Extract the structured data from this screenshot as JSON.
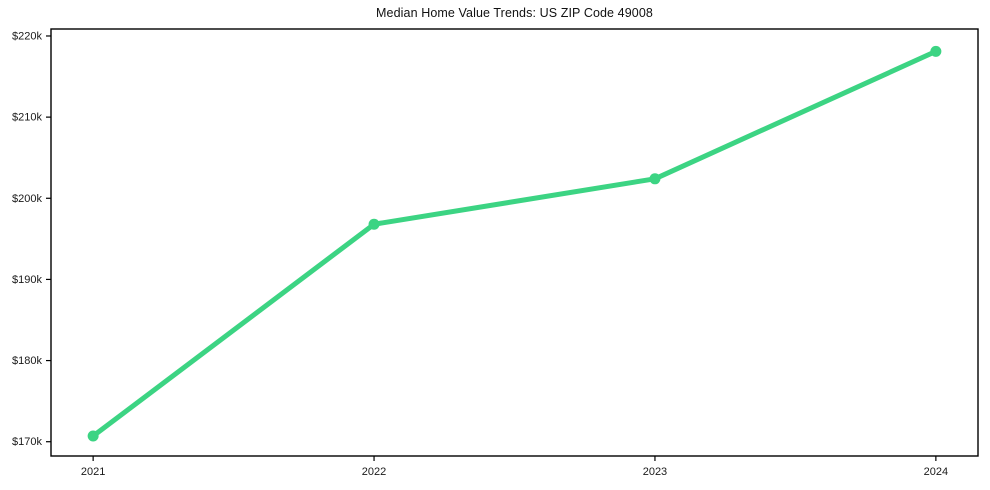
{
  "chart_data": {
    "type": "line",
    "title": "Median Home Value Trends: US ZIP Code 49008",
    "x": [
      2021,
      2022,
      2023,
      2024
    ],
    "series": [
      {
        "name": "Median Home Value",
        "values": [
          170700,
          196800,
          202400,
          218100
        ]
      }
    ],
    "xtick_values": [
      2021,
      2022,
      2023,
      2024
    ],
    "xtick_labels": [
      "2021",
      "2022",
      "2023",
      "2024"
    ],
    "ytick_values": [
      170000,
      180000,
      190000,
      200000,
      210000,
      220000
    ],
    "ytick_labels": [
      "$170k",
      "$180k",
      "$190k",
      "$200k",
      "$210k",
      "$220k"
    ],
    "xlim": [
      2020.85,
      2024.15
    ],
    "ylim": [
      168240,
      220860
    ],
    "grid": false,
    "legend": "none",
    "xlabel": "",
    "ylabel": "",
    "colors": {
      "line": "#3cd483",
      "marker": "#3cd483",
      "axis": "#000000",
      "text": "#1a1a1a",
      "background": "#ffffff"
    },
    "marker_style": "circle",
    "line_width": 5,
    "marker_radius": 5.5
  }
}
